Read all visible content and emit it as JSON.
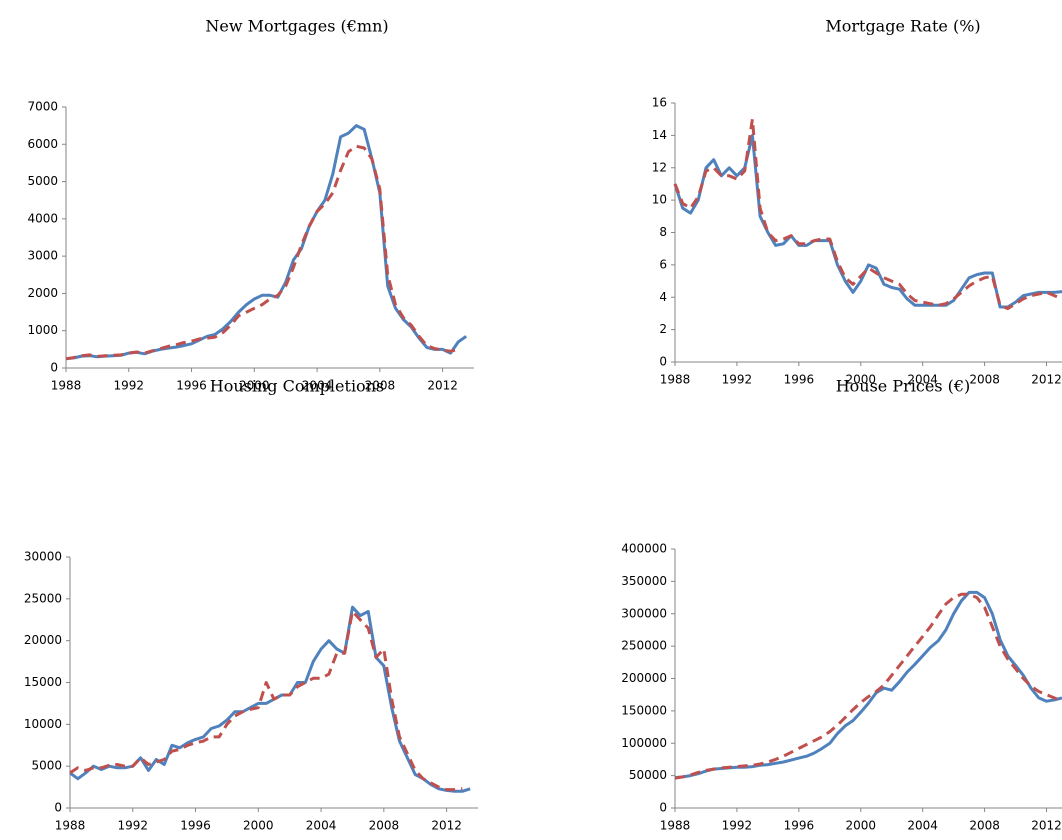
{
  "chart_data": [
    {
      "type": "line",
      "title": "New Mortgages (€mn)",
      "x": [
        1988,
        1988.5,
        1989,
        1989.5,
        1990,
        1990.5,
        1991,
        1991.5,
        1992,
        1992.5,
        1993,
        1993.5,
        1994,
        1994.5,
        1995,
        1995.5,
        1996,
        1996.5,
        1997,
        1997.5,
        1998,
        1998.5,
        1999,
        1999.5,
        2000,
        2000.5,
        2001,
        2001.5,
        2002,
        2002.5,
        2003,
        2003.5,
        2004,
        2004.5,
        2005,
        2005.5,
        2006,
        2006.5,
        2007,
        2007.5,
        2008,
        2008.5,
        2009,
        2009.5,
        2010,
        2010.5,
        2011,
        2011.5,
        2012,
        2012.5,
        2013,
        2013.5
      ],
      "series": [
        {
          "color": "#4f81bd",
          "dashed": false,
          "values": [
            250,
            270,
            320,
            330,
            300,
            320,
            330,
            340,
            400,
            420,
            380,
            450,
            500,
            530,
            560,
            600,
            650,
            750,
            850,
            900,
            1050,
            1250,
            1500,
            1700,
            1850,
            1950,
            1950,
            1900,
            2300,
            2900,
            3200,
            3800,
            4200,
            4500,
            5200,
            6200,
            6300,
            6500,
            6400,
            5600,
            4700,
            2200,
            1600,
            1300,
            1100,
            800,
            550,
            500,
            500,
            400,
            700,
            850
          ]
        },
        {
          "color": "#c0504d",
          "dashed": true,
          "values": [
            250,
            280,
            330,
            350,
            310,
            330,
            340,
            350,
            400,
            430,
            400,
            460,
            520,
            580,
            620,
            680,
            720,
            780,
            800,
            830,
            950,
            1150,
            1400,
            1500,
            1600,
            1700,
            1850,
            1950,
            2200,
            2700,
            3300,
            3800,
            4200,
            4400,
            4700,
            5300,
            5800,
            5950,
            5900,
            5600,
            4800,
            2500,
            1700,
            1350,
            1150,
            850,
            600,
            520,
            480,
            450,
            500,
            null
          ]
        }
      ],
      "xlim": [
        1988,
        2014
      ],
      "xticks": [
        1988,
        1992,
        1996,
        2000,
        2004,
        2008,
        2012
      ],
      "ylim": [
        0,
        7000
      ],
      "yticks": [
        0,
        1000,
        2000,
        3000,
        4000,
        5000,
        6000,
        7000
      ]
    },
    {
      "type": "line",
      "title": "Mortgage Rate (%)",
      "x": [
        1988,
        1988.5,
        1989,
        1989.5,
        1990,
        1990.5,
        1991,
        1991.5,
        1992,
        1992.5,
        1993,
        1993.5,
        1994,
        1994.5,
        1995,
        1995.5,
        1996,
        1996.5,
        1997,
        1997.5,
        1998,
        1998.5,
        1999,
        1999.5,
        2000,
        2000.5,
        2001,
        2001.5,
        2002,
        2002.5,
        2003,
        2003.5,
        2004,
        2004.5,
        2005,
        2005.5,
        2006,
        2006.5,
        2007,
        2007.5,
        2008,
        2008.5,
        2009,
        2009.5,
        2010,
        2010.5,
        2011,
        2011.5,
        2012,
        2012.5,
        2013
      ],
      "series": [
        {
          "color": "#4f81bd",
          "dashed": false,
          "values": [
            11,
            9.5,
            9.2,
            10,
            12,
            12.5,
            11.5,
            12,
            11.5,
            12,
            14,
            9,
            8,
            7.2,
            7.3,
            7.8,
            7.2,
            7.2,
            7.5,
            7.5,
            7.5,
            6,
            5,
            4.3,
            5,
            6,
            5.8,
            4.8,
            4.6,
            4.5,
            3.9,
            3.5,
            3.5,
            3.5,
            3.5,
            3.5,
            3.8,
            4.5,
            5.2,
            5.4,
            5.5,
            5.5,
            3.4,
            3.4,
            3.7,
            4.1,
            4.2,
            4.3,
            4.3,
            4.3,
            4.35
          ]
        },
        {
          "color": "#c0504d",
          "dashed": true,
          "values": [
            11,
            9.8,
            9.5,
            10.2,
            11.8,
            12,
            11.5,
            11.5,
            11.3,
            11.8,
            15,
            9.5,
            8,
            7.5,
            7.6,
            7.8,
            7.3,
            7.3,
            7.5,
            7.6,
            7.6,
            6.2,
            5.2,
            4.8,
            5.3,
            5.8,
            5.5,
            5.2,
            5,
            4.8,
            4.2,
            3.8,
            3.7,
            3.6,
            3.5,
            3.6,
            3.9,
            4.3,
            4.7,
            5,
            5.2,
            5.3,
            3.5,
            3.3,
            3.6,
            3.9,
            4.1,
            4.2,
            4.3,
            4.1,
            3.9
          ]
        }
      ],
      "xlim": [
        1988,
        2013
      ],
      "xticks": [
        1988,
        1992,
        1996,
        2000,
        2004,
        2008,
        2012
      ],
      "ylim": [
        0,
        16
      ],
      "yticks": [
        0,
        2,
        4,
        6,
        8,
        10,
        12,
        14,
        16
      ]
    },
    {
      "type": "line",
      "title": "Housing Completions",
      "x": [
        1988,
        1988.5,
        1989,
        1989.5,
        1990,
        1990.5,
        1991,
        1991.5,
        1992,
        1992.5,
        1993,
        1993.5,
        1994,
        1994.5,
        1995,
        1995.5,
        1996,
        1996.5,
        1997,
        1997.5,
        1998,
        1998.5,
        1999,
        1999.5,
        2000,
        2000.5,
        2001,
        2001.5,
        2002,
        2002.5,
        2003,
        2003.5,
        2004,
        2004.5,
        2005,
        2005.5,
        2006,
        2006.5,
        2007,
        2007.5,
        2008,
        2008.5,
        2009,
        2009.5,
        2010,
        2010.5,
        2011,
        2011.5,
        2012,
        2012.5,
        2013,
        2013.5
      ],
      "series": [
        {
          "color": "#4f81bd",
          "dashed": false,
          "values": [
            4200,
            3500,
            4200,
            5000,
            4600,
            5000,
            4800,
            4800,
            5000,
            6000,
            4500,
            5800,
            5200,
            7500,
            7200,
            7800,
            8200,
            8500,
            9500,
            9800,
            10500,
            11500,
            11500,
            12000,
            12500,
            12500,
            13000,
            13500,
            13500,
            15000,
            15000,
            17500,
            19000,
            20000,
            19000,
            18500,
            24000,
            23000,
            23500,
            18000,
            17000,
            12000,
            8000,
            6000,
            4000,
            3500,
            2800,
            2300,
            2100,
            2000,
            2000,
            2300
          ]
        },
        {
          "color": "#c0504d",
          "dashed": true,
          "values": [
            4200,
            4800,
            4500,
            4800,
            4800,
            5100,
            5200,
            5000,
            5000,
            6000,
            5200,
            5500,
            5800,
            6800,
            7000,
            7500,
            7800,
            8000,
            8500,
            8500,
            10000,
            11000,
            11500,
            11800,
            12000,
            15000,
            13000,
            13500,
            13500,
            14500,
            15000,
            15500,
            15500,
            16000,
            18500,
            18500,
            23500,
            22500,
            21500,
            18000,
            19000,
            13000,
            8500,
            6500,
            4500,
            3500,
            3000,
            2500,
            2200,
            2200,
            2300,
            null
          ]
        }
      ],
      "xlim": [
        1988,
        2014
      ],
      "xticks": [
        1988,
        1992,
        1996,
        2000,
        2004,
        2008,
        2012
      ],
      "ylim": [
        0,
        30000
      ],
      "yticks": [
        0,
        5000,
        10000,
        15000,
        20000,
        25000,
        30000
      ]
    },
    {
      "type": "line",
      "title": "House Prices (€)",
      "x": [
        1988,
        1988.5,
        1989,
        1989.5,
        1990,
        1990.5,
        1991,
        1991.5,
        1992,
        1992.5,
        1993,
        1993.5,
        1994,
        1994.5,
        1995,
        1995.5,
        1996,
        1996.5,
        1997,
        1997.5,
        1998,
        1998.5,
        1999,
        1999.5,
        2000,
        2000.5,
        2001,
        2001.5,
        2002,
        2002.5,
        2003,
        2003.5,
        2004,
        2004.5,
        2005,
        2005.5,
        2006,
        2006.5,
        2007,
        2007.5,
        2008,
        2008.5,
        2009,
        2009.5,
        2010,
        2010.5,
        2011,
        2011.5,
        2012,
        2012.5,
        2013
      ],
      "series": [
        {
          "color": "#4f81bd",
          "dashed": false,
          "values": [
            47000,
            48000,
            50000,
            53000,
            57000,
            60000,
            61000,
            62000,
            63000,
            63000,
            64000,
            66000,
            67000,
            69000,
            71000,
            74000,
            77000,
            80000,
            85000,
            92000,
            100000,
            115000,
            127000,
            135000,
            148000,
            162000,
            178000,
            185000,
            182000,
            195000,
            210000,
            222000,
            235000,
            248000,
            258000,
            275000,
            300000,
            320000,
            333000,
            333000,
            325000,
            300000,
            260000,
            235000,
            220000,
            205000,
            185000,
            170000,
            165000,
            167000,
            170000
          ]
        },
        {
          "color": "#c0504d",
          "dashed": true,
          "values": [
            46000,
            48000,
            51000,
            55000,
            58000,
            60000,
            62000,
            63000,
            64000,
            65000,
            66000,
            68000,
            71000,
            75000,
            80000,
            86000,
            92000,
            98000,
            104000,
            110000,
            118000,
            128000,
            140000,
            152000,
            163000,
            172000,
            180000,
            190000,
            205000,
            220000,
            235000,
            250000,
            265000,
            280000,
            298000,
            315000,
            325000,
            330000,
            330000,
            325000,
            310000,
            280000,
            250000,
            230000,
            215000,
            200000,
            188000,
            180000,
            175000,
            170000,
            165000
          ]
        }
      ],
      "xlim": [
        1988,
        2013
      ],
      "xticks": [
        1988,
        1992,
        1996,
        2000,
        2004,
        2008,
        2012
      ],
      "ylim": [
        0,
        400000
      ],
      "yticks": [
        0,
        50000,
        100000,
        150000,
        200000,
        250000,
        300000,
        350000,
        400000
      ]
    }
  ]
}
